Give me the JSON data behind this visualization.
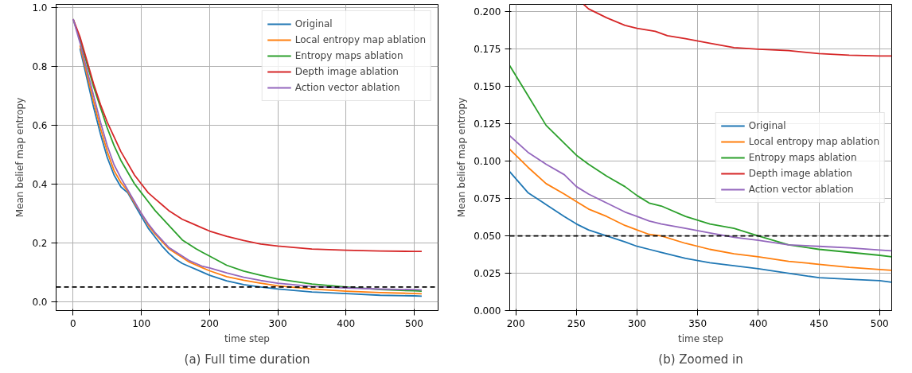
{
  "chart_data": [
    {
      "type": "line",
      "xlabel": "time step",
      "ylabel": "Mean belief map entropy",
      "annotations": [
        "(a) Full time duration"
      ],
      "xlim": [
        -25,
        535
      ],
      "ylim": [
        -0.03,
        1.01
      ],
      "xticks": [
        0,
        100,
        200,
        300,
        400,
        500
      ],
      "yticks": [
        {
          "value": 0,
          "label": "0.0"
        },
        0.2,
        0.4,
        0.6,
        0.8,
        {
          "value": 1,
          "label": "1.0"
        }
      ],
      "grid": true,
      "legend": "top right",
      "line_style": "solid",
      "ref_lines": [
        {
          "axis": "y",
          "value": 0.05,
          "label": null,
          "color": "#000000",
          "line_style": "dashed"
        }
      ],
      "x": [
        0,
        10,
        20,
        30,
        40,
        50,
        60,
        70,
        80,
        90,
        100,
        110,
        120,
        130,
        140,
        150,
        160,
        170,
        180,
        190,
        200,
        225,
        250,
        275,
        300,
        350,
        400,
        450,
        500,
        511
      ],
      "series": [
        {
          "name": "Original",
          "color": "#1f77b4",
          "values": [
            null,
            0.86,
            0.76,
            0.66,
            0.57,
            0.49,
            0.43,
            0.39,
            0.37,
            0.33,
            0.29,
            0.25,
            0.22,
            0.19,
            0.165,
            0.145,
            0.13,
            0.12,
            0.11,
            0.1,
            0.09,
            0.071,
            0.058,
            0.05,
            0.043,
            0.033,
            0.028,
            0.022,
            0.02,
            0.019
          ]
        },
        {
          "name": "Local entropy map ablation",
          "color": "#ff7f0e",
          "values": [
            null,
            0.87,
            0.775,
            0.68,
            0.59,
            0.51,
            0.445,
            0.405,
            0.375,
            0.335,
            0.3,
            0.26,
            0.23,
            0.205,
            0.18,
            0.165,
            0.15,
            0.135,
            0.125,
            0.115,
            0.105,
            0.085,
            0.073,
            0.063,
            0.054,
            0.043,
            0.036,
            0.031,
            0.028,
            0.027
          ]
        },
        {
          "name": "Entropy maps ablation",
          "color": "#2ca02c",
          "values": [
            0.96,
            0.89,
            0.81,
            0.73,
            0.66,
            0.59,
            0.53,
            0.48,
            0.44,
            0.4,
            0.37,
            0.34,
            0.31,
            0.285,
            0.26,
            0.235,
            0.21,
            0.195,
            0.18,
            0.167,
            0.155,
            0.124,
            0.104,
            0.09,
            0.077,
            0.06,
            0.05,
            0.041,
            0.037,
            0.036
          ]
        },
        {
          "name": "Depth image ablation",
          "color": "#d62728",
          "values": [
            0.96,
            0.9,
            0.82,
            0.74,
            0.67,
            0.61,
            0.56,
            0.51,
            0.47,
            0.43,
            0.4,
            0.37,
            0.35,
            0.33,
            0.31,
            0.295,
            0.28,
            0.27,
            0.26,
            0.25,
            0.24,
            0.222,
            0.208,
            0.196,
            0.189,
            0.179,
            0.175,
            0.172,
            0.171,
            0.171
          ]
        },
        {
          "name": "Action vector ablation",
          "color": "#9467bd",
          "values": [
            0.96,
            0.88,
            0.79,
            0.7,
            0.61,
            0.53,
            0.465,
            0.42,
            0.38,
            0.34,
            0.3,
            0.265,
            0.235,
            0.21,
            0.185,
            0.17,
            0.155,
            0.14,
            0.13,
            0.12,
            0.115,
            0.098,
            0.083,
            0.072,
            0.063,
            0.052,
            0.047,
            0.043,
            0.041,
            0.04
          ]
        }
      ]
    },
    {
      "type": "line",
      "xlabel": "time step",
      "ylabel": "Mean belief map entropy",
      "annotations": [
        "(b) Zoomed in"
      ],
      "xlim": [
        195,
        510
      ],
      "ylim": [
        0,
        0.205
      ],
      "xticks": [
        200,
        250,
        300,
        350,
        400,
        450,
        500
      ],
      "yticks": [
        {
          "value": 0,
          "label": "0.000"
        },
        {
          "value": 0.025,
          "label": "0.025"
        },
        {
          "value": 0.05,
          "label": "0.050"
        },
        {
          "value": 0.075,
          "label": "0.075"
        },
        {
          "value": 0.1,
          "label": "0.100"
        },
        {
          "value": 0.125,
          "label": "0.125"
        },
        {
          "value": 0.15,
          "label": "0.150"
        },
        {
          "value": 0.175,
          "label": "0.175"
        },
        {
          "value": 0.2,
          "label": "0.200"
        }
      ],
      "grid": true,
      "legend": "right",
      "line_style": "solid",
      "ref_lines": [
        {
          "axis": "y",
          "value": 0.05,
          "label": null,
          "color": "#000000",
          "line_style": "dashed"
        }
      ],
      "x": [
        195,
        210,
        225,
        240,
        250,
        260,
        275,
        290,
        300,
        310,
        320,
        340,
        360,
        380,
        400,
        425,
        450,
        475,
        500,
        510
      ],
      "series": [
        {
          "name": "Original",
          "color": "#1f77b4",
          "values": [
            0.093,
            0.079,
            0.071,
            0.063,
            0.058,
            0.054,
            0.05,
            0.046,
            0.043,
            0.041,
            0.039,
            0.035,
            0.032,
            0.03,
            0.028,
            0.025,
            0.022,
            0.021,
            0.02,
            0.019
          ]
        },
        {
          "name": "Local entropy map ablation",
          "color": "#ff7f0e",
          "values": [
            0.108,
            0.096,
            0.085,
            0.078,
            0.073,
            0.068,
            0.063,
            0.057,
            0.054,
            0.051,
            0.05,
            0.045,
            0.041,
            0.038,
            0.036,
            0.033,
            0.031,
            0.029,
            0.0275,
            0.027
          ]
        },
        {
          "name": "Entropy maps ablation",
          "color": "#2ca02c",
          "values": [
            0.164,
            0.144,
            0.124,
            0.112,
            0.104,
            0.098,
            0.09,
            0.083,
            0.077,
            0.072,
            0.07,
            0.063,
            0.058,
            0.055,
            0.05,
            0.044,
            0.041,
            0.039,
            0.037,
            0.036
          ]
        },
        {
          "name": "Depth image ablation",
          "color": "#d62728",
          "x": [
            256,
            260,
            275,
            290,
            300,
            315,
            325,
            340,
            360,
            380,
            400,
            425,
            450,
            475,
            500,
            510
          ],
          "values": [
            0.205,
            0.202,
            0.196,
            0.191,
            0.189,
            0.187,
            0.184,
            0.182,
            0.179,
            0.176,
            0.175,
            0.174,
            0.172,
            0.171,
            0.1705,
            0.1705
          ]
        },
        {
          "name": "Action vector ablation",
          "color": "#9467bd",
          "values": [
            0.117,
            0.106,
            0.098,
            0.091,
            0.083,
            0.078,
            0.072,
            0.066,
            0.063,
            0.06,
            0.058,
            0.055,
            0.052,
            0.049,
            0.047,
            0.044,
            0.043,
            0.042,
            0.0405,
            0.04
          ]
        }
      ]
    }
  ]
}
